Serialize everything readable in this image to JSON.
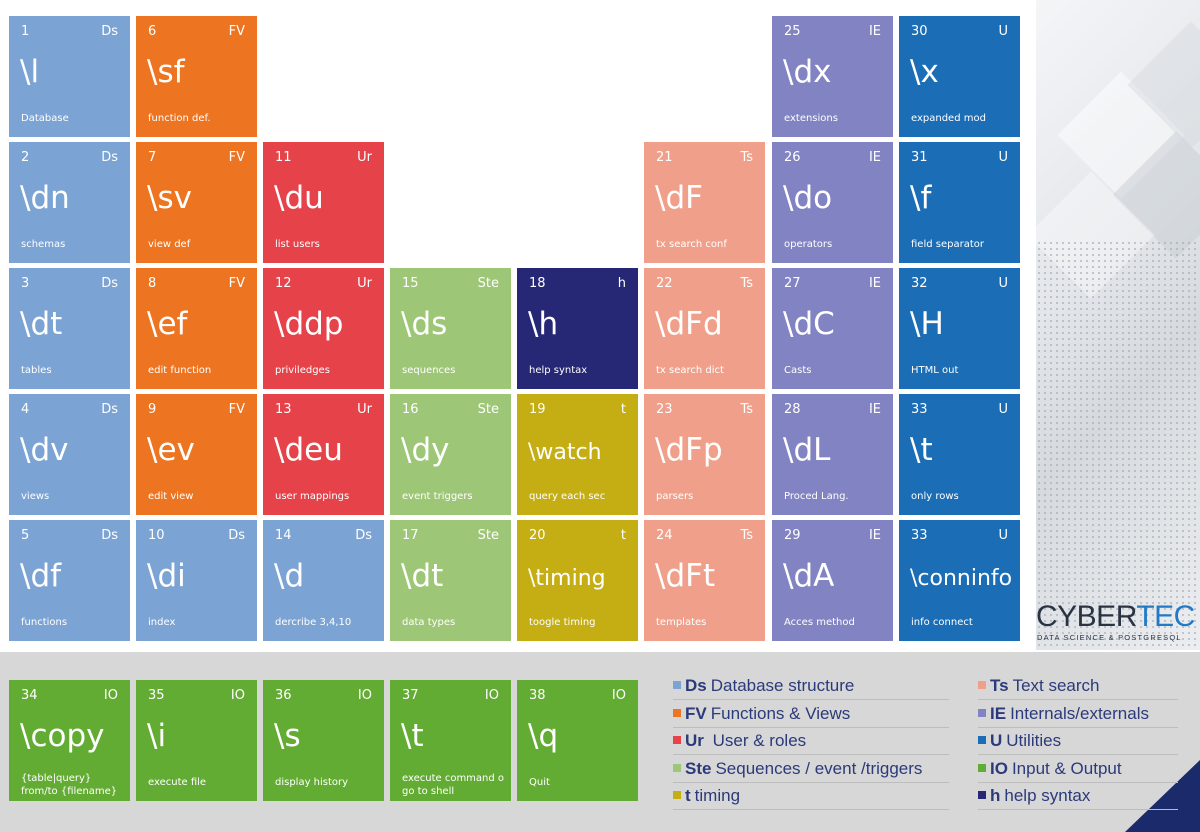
{
  "colors": {
    "Ds": "#7ba3d4",
    "FV": "#ed7420",
    "Ur": "#e5424a",
    "Ste": "#9dc776",
    "h": "#262775",
    "t": "#c4ae14",
    "Ts": "#f0a08a",
    "IE": "#8283c2",
    "U": "#1b6db5",
    "IO": "#63ac33"
  },
  "tiles": [
    {
      "num": "1",
      "group": "Ds",
      "cmd": "\\l",
      "desc": "Database"
    },
    {
      "num": "2",
      "group": "Ds",
      "cmd": "\\dn",
      "desc": "schemas"
    },
    {
      "num": "3",
      "group": "Ds",
      "cmd": "\\dt",
      "desc": "tables"
    },
    {
      "num": "4",
      "group": "Ds",
      "cmd": "\\dv",
      "desc": "views"
    },
    {
      "num": "5",
      "group": "Ds",
      "cmd": "\\df",
      "desc": "functions"
    },
    {
      "num": "6",
      "group": "FV",
      "cmd": "\\sf",
      "desc": "function def."
    },
    {
      "num": "7",
      "group": "FV",
      "cmd": "\\sv",
      "desc": "view def"
    },
    {
      "num": "8",
      "group": "FV",
      "cmd": "\\ef",
      "desc": "edit function"
    },
    {
      "num": "9",
      "group": "FV",
      "cmd": "\\ev",
      "desc": "edit view"
    },
    {
      "num": "10",
      "group": "Ds",
      "cmd": "\\di",
      "desc": "index"
    },
    {
      "num": "11",
      "group": "Ur",
      "cmd": "\\du",
      "desc": "list users"
    },
    {
      "num": "12",
      "group": "Ur",
      "cmd": "\\ddp",
      "desc": "priviledges"
    },
    {
      "num": "13",
      "group": "Ur",
      "cmd": "\\deu",
      "desc": "user mappings"
    },
    {
      "num": "14",
      "group": "Ds",
      "cmd": "\\d",
      "desc": "dercribe 3,4,10"
    },
    {
      "num": "15",
      "group": "Ste",
      "cmd": "\\ds",
      "desc": "sequences"
    },
    {
      "num": "16",
      "group": "Ste",
      "cmd": "\\dy",
      "desc": "event triggers"
    },
    {
      "num": "17",
      "group": "Ste",
      "cmd": "\\dt",
      "desc": "data types"
    },
    {
      "num": "18",
      "group": "h",
      "cmd": "\\h",
      "desc": "help syntax"
    },
    {
      "num": "19",
      "group": "t",
      "cmd": "\\watch",
      "desc": "query each sec"
    },
    {
      "num": "20",
      "group": "t",
      "cmd": "\\timing",
      "desc": "toogle timing"
    },
    {
      "num": "21",
      "group": "Ts",
      "cmd": "\\dF",
      "desc": "tx search conf"
    },
    {
      "num": "22",
      "group": "Ts",
      "cmd": "\\dFd",
      "desc": "tx search dict"
    },
    {
      "num": "23",
      "group": "Ts",
      "cmd": "\\dFp",
      "desc": "parsers"
    },
    {
      "num": "24",
      "group": "Ts",
      "cmd": "\\dFt",
      "desc": "templates"
    },
    {
      "num": "25",
      "group": "IE",
      "cmd": "\\dx",
      "desc": "extensions"
    },
    {
      "num": "26",
      "group": "IE",
      "cmd": "\\do",
      "desc": "operators"
    },
    {
      "num": "27",
      "group": "IE",
      "cmd": "\\dC",
      "desc": "Casts"
    },
    {
      "num": "28",
      "group": "IE",
      "cmd": "\\dL",
      "desc": "Proced Lang."
    },
    {
      "num": "29",
      "group": "IE",
      "cmd": "\\dA",
      "desc": "Acces method"
    },
    {
      "num": "30",
      "group": "U",
      "cmd": "\\x",
      "desc": "expanded mod"
    },
    {
      "num": "31",
      "group": "U",
      "cmd": "\\f",
      "desc": "field separator"
    },
    {
      "num": "32",
      "group": "U",
      "cmd": "\\H",
      "desc": "HTML out"
    },
    {
      "num": "33",
      "group": "U",
      "cmd": "\\t",
      "desc": "only rows"
    },
    {
      "num": "33",
      "group": "U",
      "cmd": "\\conninfo",
      "desc": "info connect"
    },
    {
      "num": "34",
      "group": "IO",
      "cmd": "\\copy",
      "desc": "{table|query} from/to {filename}"
    },
    {
      "num": "35",
      "group": "IO",
      "cmd": "\\i",
      "desc": "execute file"
    },
    {
      "num": "36",
      "group": "IO",
      "cmd": "\\s",
      "desc": "display history"
    },
    {
      "num": "37",
      "group": "IO",
      "cmd": "\\t",
      "desc": "execute command o go to  shell"
    },
    {
      "num": "38",
      "group": "IO",
      "cmd": "\\q",
      "desc": "Quit"
    }
  ],
  "legend": [
    {
      "code": "Ds",
      "label": "Database structure"
    },
    {
      "code": "FV",
      "label": "Functions & Views"
    },
    {
      "code": "Ur",
      "label": " User & roles"
    },
    {
      "code": "Ste",
      "label": "Sequences / event /triggers"
    },
    {
      "code": "t",
      "label": "timing"
    },
    {
      "code": "Ts",
      "label": "Text search"
    },
    {
      "code": "IE",
      "label": "Internals/externals"
    },
    {
      "code": "U",
      "label": "Utilities"
    },
    {
      "code": "IO",
      "label": "Input & Output"
    },
    {
      "code": "h",
      "label": "help syntax"
    }
  ],
  "logo": {
    "part1": "CYBER",
    "part2": "TEC",
    "tagline": "DATA SCIENCE & POSTGRESQL"
  }
}
